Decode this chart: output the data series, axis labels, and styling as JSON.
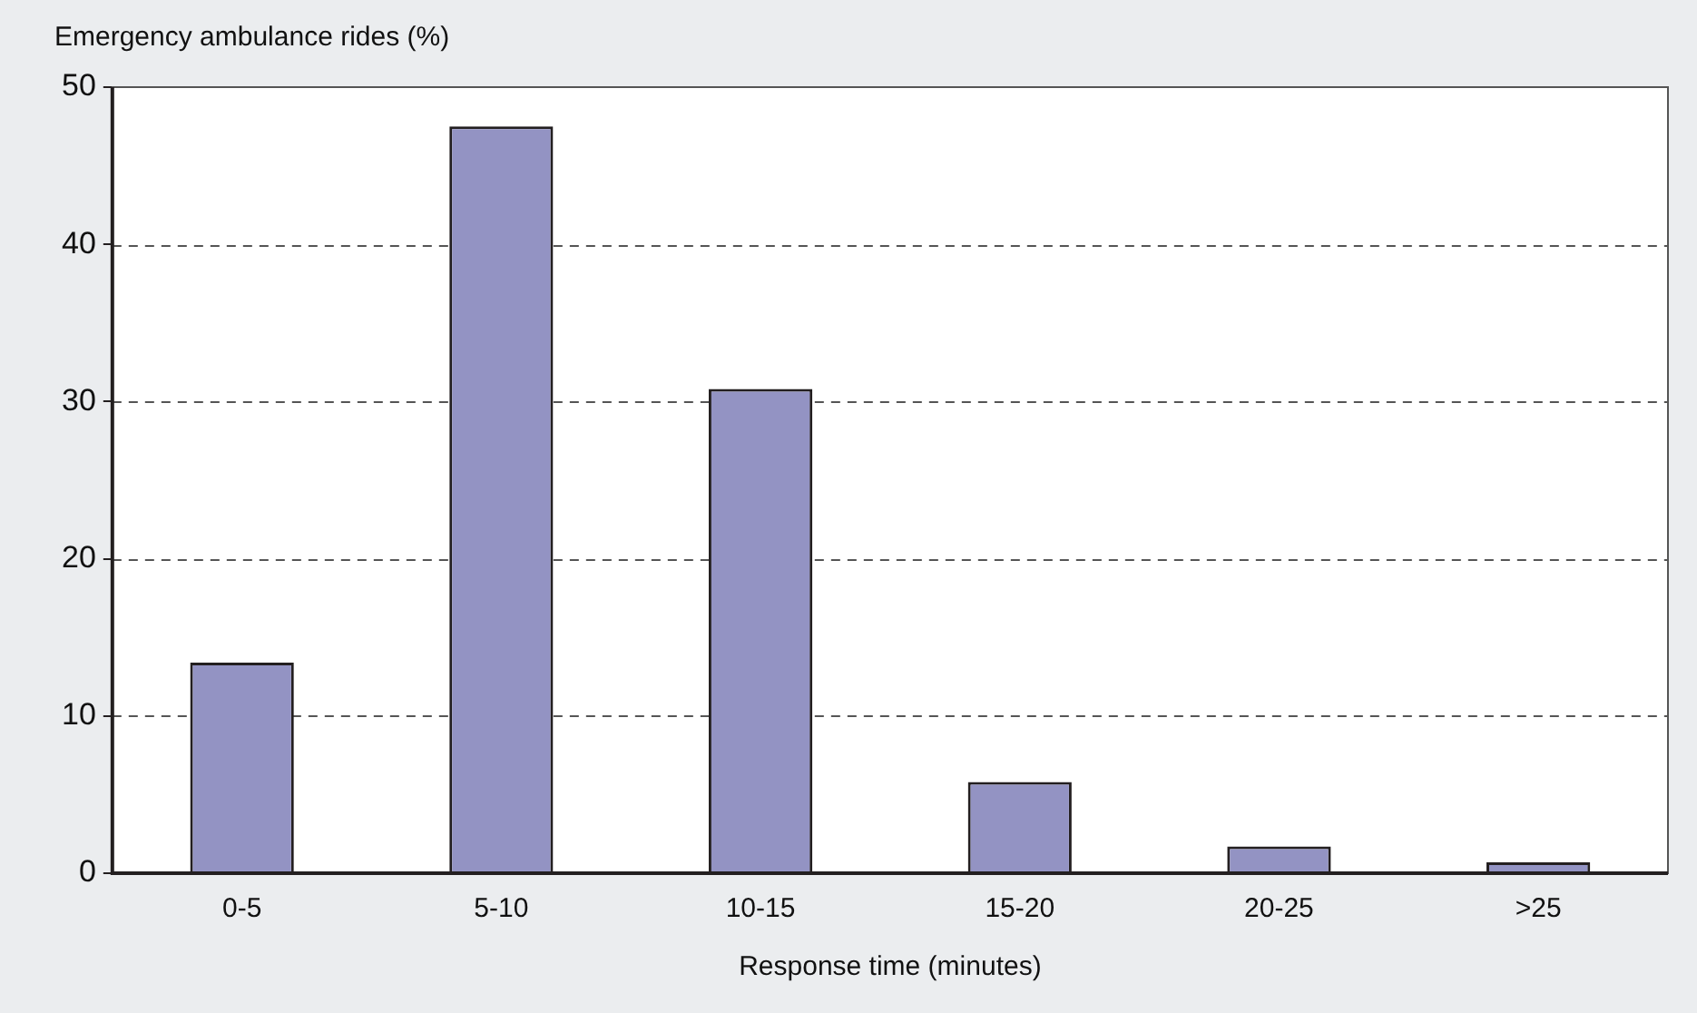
{
  "chart_data": {
    "type": "bar",
    "xlabel": "Response time (minutes)",
    "ylabel": "Emergency ambulance rides (%)",
    "categories": [
      "0-5",
      "5-10",
      "10-15",
      "15-20",
      "20-25",
      ">25"
    ],
    "values": [
      13.4,
      47.5,
      30.8,
      5.8,
      1.7,
      0.7
    ],
    "color": "#9393c3",
    "ylim": [
      0,
      50
    ],
    "yticks": [
      0,
      10,
      20,
      30,
      40,
      50
    ],
    "grid": "y"
  }
}
